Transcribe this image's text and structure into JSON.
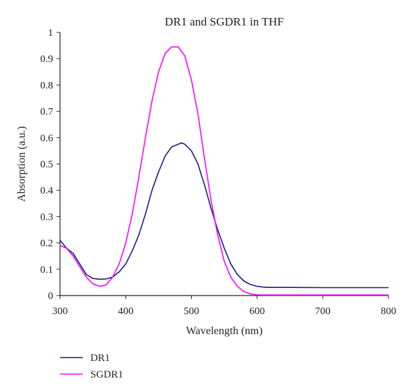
{
  "chart_data": {
    "type": "line",
    "title": "DR1 and SGDR1 in THF",
    "xlabel": "Wavelength (nm)",
    "ylabel": "Absorption (a.u.)",
    "xlim": [
      300,
      800
    ],
    "ylim": [
      0,
      1
    ],
    "xticks": [
      "300",
      "400",
      "500",
      "600",
      "700",
      "800"
    ],
    "yticks": [
      "0",
      "0.1",
      "0.2",
      "0.3",
      "0.4",
      "0.5",
      "0.6",
      "0.7",
      "0.8",
      "0.9",
      "1"
    ],
    "grid": false,
    "legend_position": "bottom-left",
    "series": [
      {
        "name": "DR1",
        "color": "#1a1a80",
        "x": [
          300,
          310,
          320,
          330,
          340,
          350,
          360,
          370,
          380,
          390,
          400,
          410,
          420,
          430,
          440,
          450,
          460,
          470,
          480,
          485,
          490,
          500,
          510,
          520,
          530,
          540,
          550,
          560,
          570,
          580,
          590,
          600,
          610,
          620,
          650,
          700,
          750,
          800
        ],
        "y": [
          0.21,
          0.18,
          0.16,
          0.12,
          0.08,
          0.065,
          0.062,
          0.063,
          0.07,
          0.09,
          0.12,
          0.17,
          0.23,
          0.31,
          0.4,
          0.47,
          0.53,
          0.565,
          0.575,
          0.58,
          0.575,
          0.55,
          0.5,
          0.42,
          0.33,
          0.25,
          0.18,
          0.12,
          0.08,
          0.055,
          0.042,
          0.035,
          0.032,
          0.031,
          0.031,
          0.03,
          0.03,
          0.03
        ]
      },
      {
        "name": "SGDR1",
        "color": "#ff00ff",
        "x": [
          300,
          310,
          320,
          330,
          340,
          350,
          360,
          370,
          380,
          390,
          400,
          410,
          420,
          430,
          440,
          450,
          460,
          470,
          480,
          490,
          500,
          510,
          520,
          530,
          540,
          550,
          560,
          570,
          580,
          590,
          600,
          610,
          620,
          650,
          700,
          750,
          800
        ],
        "y": [
          0.19,
          0.18,
          0.15,
          0.11,
          0.07,
          0.045,
          0.035,
          0.04,
          0.07,
          0.12,
          0.2,
          0.31,
          0.45,
          0.6,
          0.74,
          0.85,
          0.92,
          0.945,
          0.945,
          0.91,
          0.82,
          0.69,
          0.52,
          0.36,
          0.23,
          0.13,
          0.07,
          0.035,
          0.015,
          0.006,
          0.003,
          0.002,
          0.002,
          0.002,
          0.002,
          0.002,
          0.002
        ]
      }
    ]
  }
}
